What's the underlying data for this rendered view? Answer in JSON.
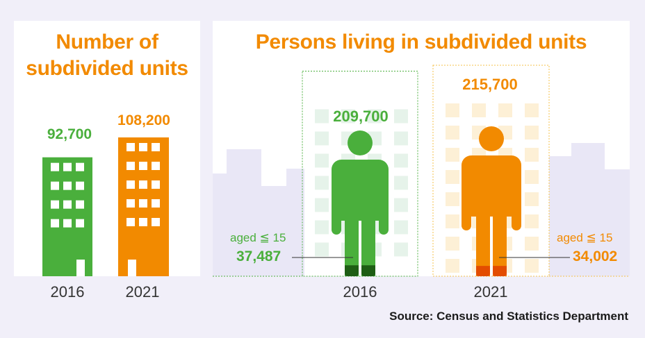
{
  "colors": {
    "green": "#4aaf3c",
    "orange": "#f28a00",
    "dark_green": "#1e5e14",
    "red_orange": "#e34c00",
    "skyline": "#e9e7f6",
    "panel_bg": "#ffffff",
    "page_bg": "#f1eff9"
  },
  "source": "Source: Census and Statistics Department",
  "chart_data": [
    {
      "type": "bar",
      "title": "Number of subdivided units",
      "categories": [
        "2016",
        "2021"
      ],
      "values": [
        92700,
        108200
      ],
      "value_labels": [
        "92,700",
        "108,200"
      ],
      "icon": "building-icon"
    },
    {
      "type": "bar",
      "title": "Persons living in subdivided units",
      "categories": [
        "2016",
        "2021"
      ],
      "values": [
        209700,
        215700
      ],
      "value_labels": [
        "209,700",
        "215,700"
      ],
      "icon": "person-icon",
      "sub_series": {
        "label": "aged ≦ 15",
        "values": [
          37487,
          34002
        ],
        "value_labels": [
          "37,487",
          "34,002"
        ]
      }
    }
  ]
}
